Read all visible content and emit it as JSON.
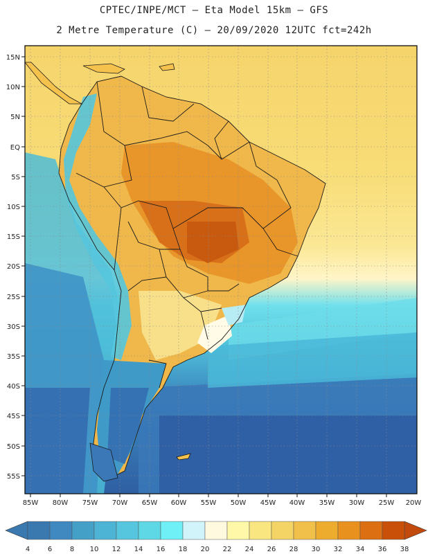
{
  "header": {
    "line1": "CPTEC/INPE/MCT –  Eta Model 15km – GFS",
    "line2": "2 Metre Temperature (C) – 20/09/2020 12UTC fct=242h"
  },
  "map": {
    "lat_labels": [
      "15N",
      "10N",
      "5N",
      "EQ",
      "5S",
      "10S",
      "15S",
      "20S",
      "25S",
      "30S",
      "35S",
      "40S",
      "45S",
      "50S",
      "55S"
    ],
    "lon_labels": [
      "85W",
      "80W",
      "75W",
      "70W",
      "65W",
      "60W",
      "55W",
      "50W",
      "45W",
      "40W",
      "35W",
      "30W",
      "25W",
      "20W"
    ]
  },
  "colorbar": {
    "values": [
      "4",
      "6",
      "8",
      "10",
      "12",
      "14",
      "16",
      "18",
      "20",
      "22",
      "24",
      "26",
      "28",
      "30",
      "32",
      "34",
      "36",
      "38"
    ],
    "colors": [
      "#3a78b0",
      "#3f88c0",
      "#45a0c8",
      "#4db4d6",
      "#55c6de",
      "#5fd8e6",
      "#6ff0f6",
      "#d0f4fa",
      "#fff9e0",
      "#fff8a8",
      "#fae680",
      "#f5d466",
      "#f0c04a",
      "#eeac2e",
      "#e8911e",
      "#dc6f12",
      "#c85008"
    ],
    "low_color": "#3a78b0",
    "high_color": "#c24a0c"
  }
}
